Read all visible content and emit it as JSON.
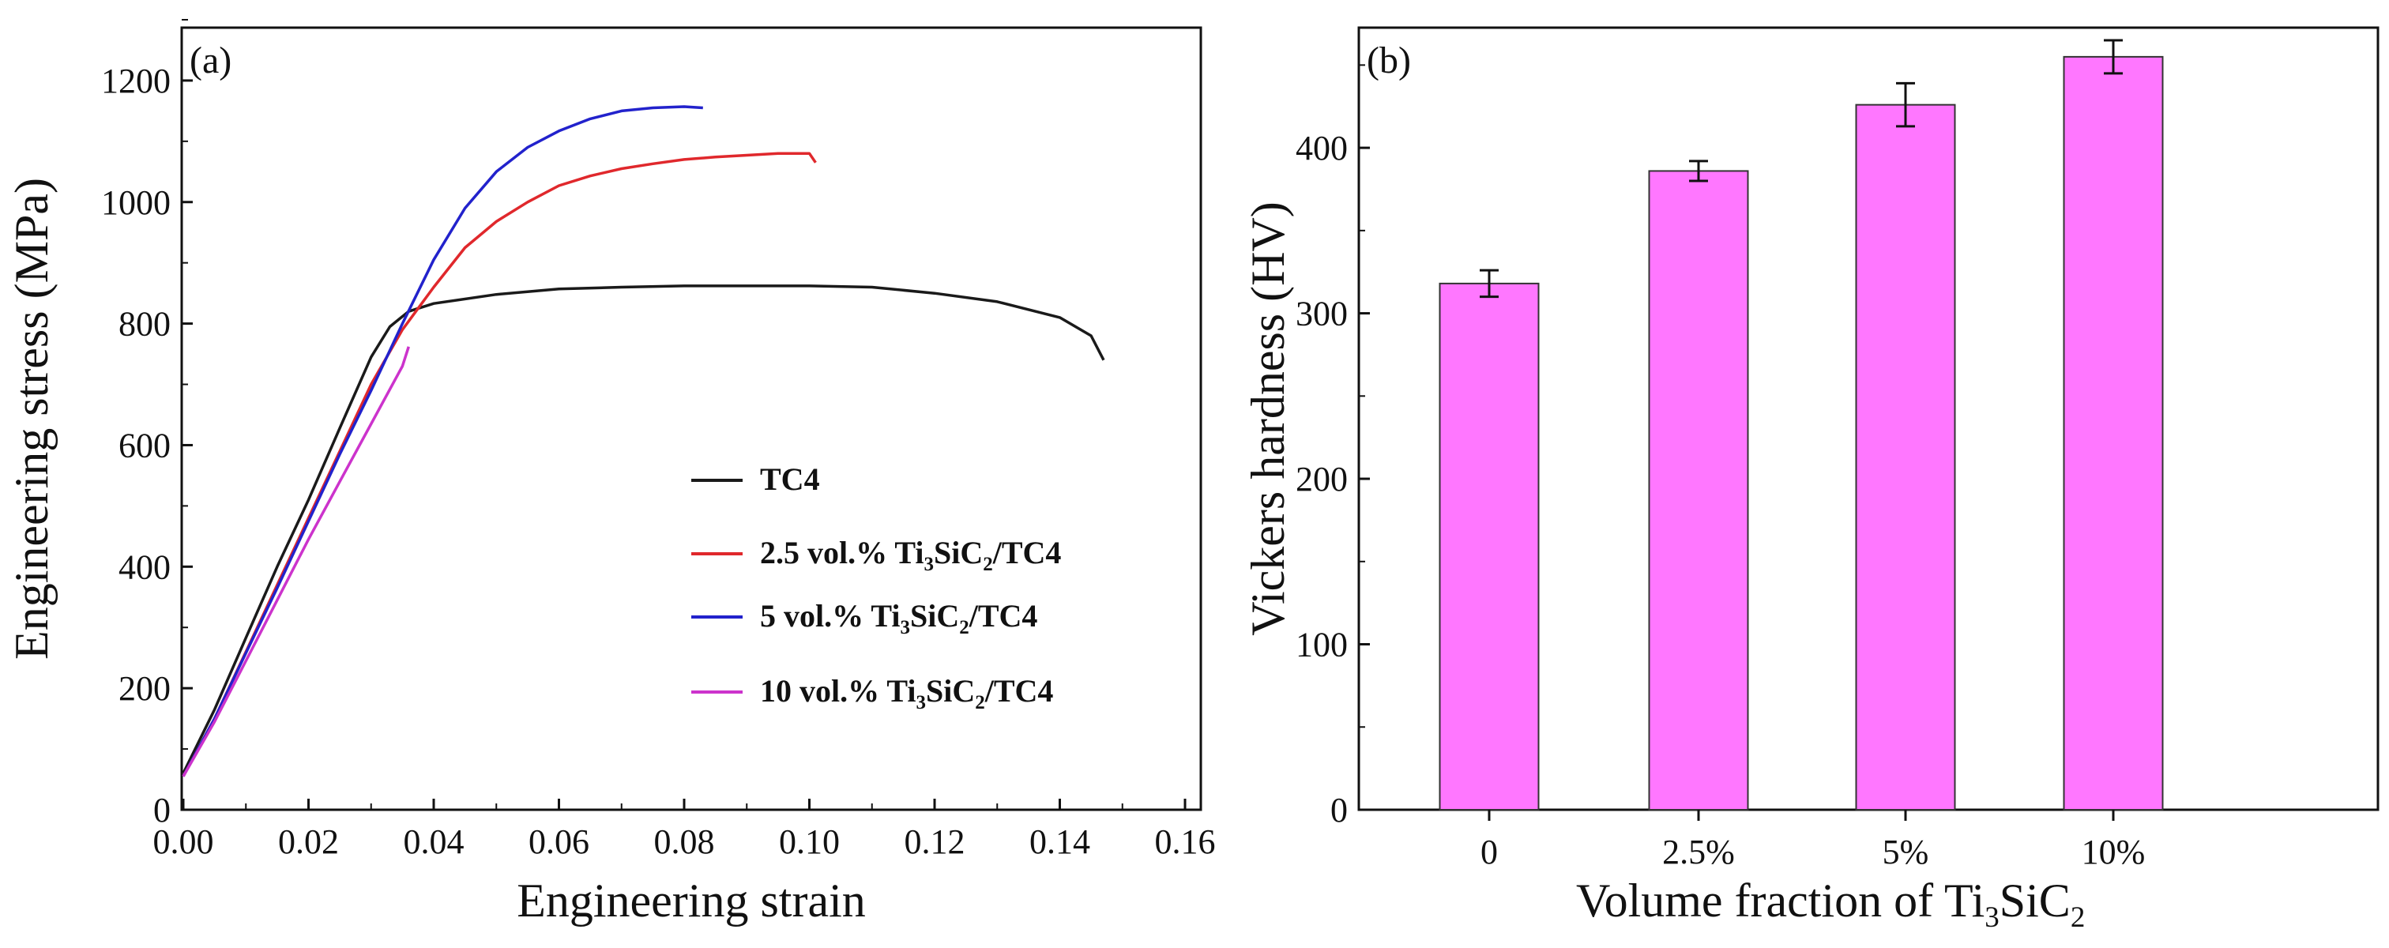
{
  "chart_data": [
    {
      "panel": "(a)",
      "type": "line",
      "xlabel": "Engineering strain",
      "ylabel": "Engineering stress (MPa)",
      "xlim": [
        0,
        0.16
      ],
      "ylim": [
        0,
        1300
      ],
      "xticks": [
        "0.00",
        "0.02",
        "0.04",
        "0.06",
        "0.08",
        "0.10",
        "0.12",
        "0.14",
        "0.16"
      ],
      "yticks": [
        "0",
        "200",
        "400",
        "600",
        "800",
        "1000",
        "1200"
      ],
      "legend_position": "center-right",
      "series": [
        {
          "name": "TC4",
          "legend_parts": [
            "TC4"
          ],
          "color": "#1a1a1a",
          "points": [
            [
              0,
              60
            ],
            [
              0.005,
              165
            ],
            [
              0.01,
              283
            ],
            [
              0.015,
              400
            ],
            [
              0.02,
              510
            ],
            [
              0.025,
              628
            ],
            [
              0.03,
              745
            ],
            [
              0.033,
              795
            ],
            [
              0.036,
              820
            ],
            [
              0.04,
              833
            ],
            [
              0.05,
              848
            ],
            [
              0.06,
              857
            ],
            [
              0.07,
              860
            ],
            [
              0.08,
              862
            ],
            [
              0.09,
              862
            ],
            [
              0.1,
              862
            ],
            [
              0.11,
              860
            ],
            [
              0.12,
              850
            ],
            [
              0.13,
              836
            ],
            [
              0.14,
              810
            ],
            [
              0.145,
              780
            ],
            [
              0.147,
              740
            ]
          ]
        },
        {
          "name": "2.5 vol.% Ti3SiC2/TC4",
          "legend_parts": [
            "2.5 vol.% Ti",
            "3",
            "SiC",
            "2",
            "/TC4"
          ],
          "color": "#e0282c",
          "points": [
            [
              0,
              55
            ],
            [
              0.005,
              150
            ],
            [
              0.01,
              260
            ],
            [
              0.015,
              370
            ],
            [
              0.02,
              480
            ],
            [
              0.025,
              590
            ],
            [
              0.03,
              700
            ],
            [
              0.035,
              790
            ],
            [
              0.04,
              860
            ],
            [
              0.045,
              925
            ],
            [
              0.05,
              968
            ],
            [
              0.055,
              1000
            ],
            [
              0.06,
              1027
            ],
            [
              0.065,
              1043
            ],
            [
              0.07,
              1055
            ],
            [
              0.075,
              1063
            ],
            [
              0.08,
              1070
            ],
            [
              0.085,
              1074
            ],
            [
              0.09,
              1077
            ],
            [
              0.095,
              1080
            ],
            [
              0.1,
              1080
            ],
            [
              0.101,
              1065
            ]
          ]
        },
        {
          "name": "5 vol.% Ti3SiC2/TC4",
          "legend_parts": [
            "5 vol.% Ti",
            "3",
            "SiC",
            "2",
            "/TC4"
          ],
          "color": "#2222cc",
          "points": [
            [
              0,
              55
            ],
            [
              0.005,
              150
            ],
            [
              0.01,
              258
            ],
            [
              0.015,
              365
            ],
            [
              0.02,
              475
            ],
            [
              0.025,
              585
            ],
            [
              0.03,
              690
            ],
            [
              0.035,
              800
            ],
            [
              0.04,
              905
            ],
            [
              0.045,
              990
            ],
            [
              0.05,
              1050
            ],
            [
              0.055,
              1090
            ],
            [
              0.06,
              1117
            ],
            [
              0.065,
              1137
            ],
            [
              0.07,
              1150
            ],
            [
              0.075,
              1155
            ],
            [
              0.08,
              1157
            ],
            [
              0.083,
              1155
            ]
          ]
        },
        {
          "name": "10 vol.% Ti3SiC2/TC4",
          "legend_parts": [
            "10 vol.% Ti",
            "3",
            "SiC",
            "2",
            "/TC4"
          ],
          "color": "#cc33cc",
          "points": [
            [
              0,
              55
            ],
            [
              0.005,
              145
            ],
            [
              0.01,
              245
            ],
            [
              0.015,
              345
            ],
            [
              0.02,
              445
            ],
            [
              0.025,
              540
            ],
            [
              0.03,
              635
            ],
            [
              0.035,
              730
            ],
            [
              0.036,
              762
            ]
          ]
        }
      ]
    },
    {
      "panel": "(b)",
      "type": "bar",
      "xlabel": "Volume fraction of Ti3SiC2",
      "xlabel_parts": [
        "Volume fraction of Ti",
        "3",
        "SiC",
        "2"
      ],
      "ylabel": "Vickers hardness (HV)",
      "categories": [
        "0",
        "2.5%",
        "5%",
        "10%"
      ],
      "values": [
        318,
        386,
        426,
        455
      ],
      "errors": [
        8,
        6,
        13,
        10
      ],
      "ylim": [
        0,
        475
      ],
      "yticks": [
        "0",
        "100",
        "200",
        "300",
        "400"
      ],
      "bar_color": "#ff77ff"
    }
  ]
}
